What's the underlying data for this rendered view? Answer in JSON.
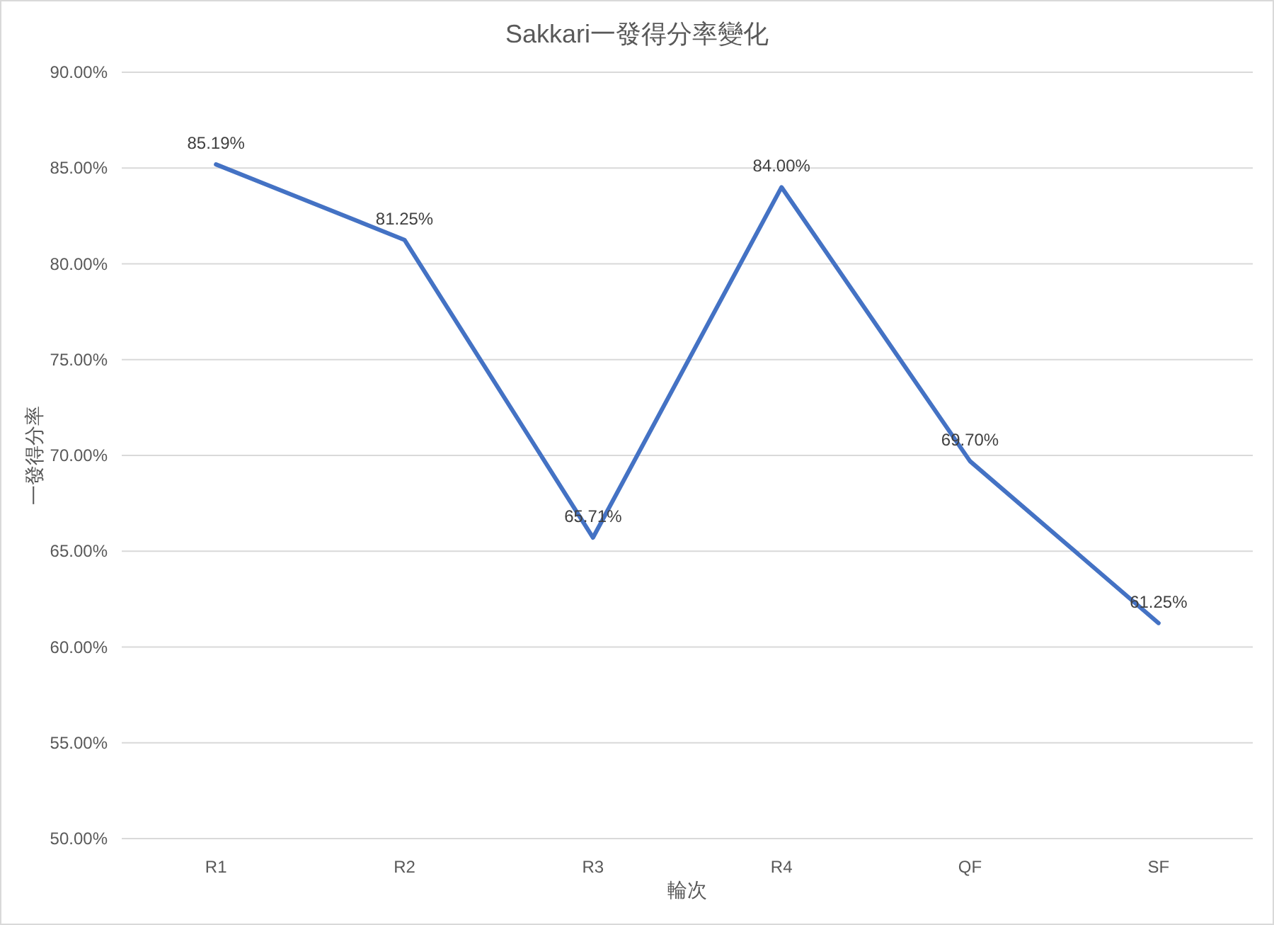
{
  "chart_data": {
    "type": "line",
    "title": "Sakkari一發得分率變化",
    "xlabel": "輪次",
    "ylabel": "一發得分率",
    "categories": [
      "R1",
      "R2",
      "R3",
      "R4",
      "QF",
      "SF"
    ],
    "series": [
      {
        "color": "#4472c4",
        "values": [
          85.19,
          81.25,
          65.71,
          84.0,
          69.7,
          61.25
        ],
        "value_labels": [
          "85.19%",
          "81.25%",
          "65.71%",
          "84.00%",
          "69.70%",
          "61.25%"
        ]
      }
    ],
    "ylim": [
      50,
      90
    ],
    "yticks": [
      {
        "value": 50,
        "label": "50.00%"
      },
      {
        "value": 55,
        "label": "55.00%"
      },
      {
        "value": 60,
        "label": "60.00%"
      },
      {
        "value": 65,
        "label": "65.00%"
      },
      {
        "value": 70,
        "label": "70.00%"
      },
      {
        "value": 75,
        "label": "75.00%"
      },
      {
        "value": 80,
        "label": "80.00%"
      },
      {
        "value": 85,
        "label": "85.00%"
      },
      {
        "value": 90,
        "label": "90.00%"
      }
    ],
    "grid": "y"
  }
}
